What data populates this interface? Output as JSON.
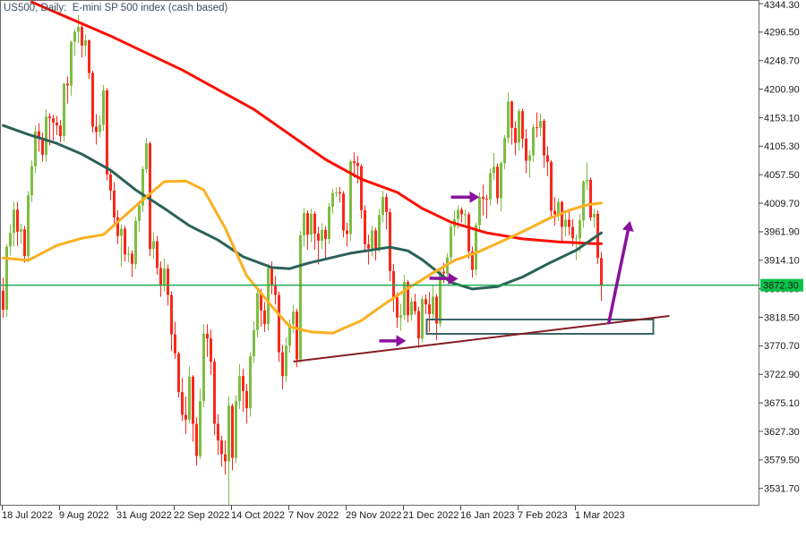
{
  "header": {
    "title": "US500, Daily:  E-mini SP 500 index (cash based)"
  },
  "chart_data": {
    "type": "candlestick",
    "symbol": "US500",
    "timeframe": "Daily",
    "description": "E-mini SP 500 index (cash based)",
    "current_price": "3872.30",
    "colors": {
      "bull": "#7dbe41",
      "bear": "#f8281a",
      "price_line": "#22ab56",
      "price_badge": "#0cc24a",
      "badge_text": "#062a10",
      "trendline": "#861c24",
      "rectangle": "#3c6468",
      "arrow": "#8a129c",
      "border": "#6b6b6b",
      "axis_text": "#1a1a1a"
    },
    "y_axis": {
      "labels": [
        "4344.30",
        "4296.50",
        "4248.70",
        "4200.90",
        "4153.10",
        "4105.30",
        "4057.50",
        "4009.70",
        "3961.90",
        "3914.10",
        "3866.30",
        "3818.50",
        "3770.70",
        "3722.90",
        "3675.10",
        "3627.30",
        "3579.50",
        "3531.70"
      ],
      "step": 47.8
    },
    "x_axis": {
      "ticks": [
        {
          "index": 0,
          "label": "18 Jul 2022"
        },
        {
          "index": 16,
          "label": "9 Aug 2022"
        },
        {
          "index": 32,
          "label": "31 Aug 2022"
        },
        {
          "index": 48,
          "label": "22 Sep 2022"
        },
        {
          "index": 64,
          "label": "14 Oct 2022"
        },
        {
          "index": 80,
          "label": "7 Nov 2022"
        },
        {
          "index": 96,
          "label": "29 Nov 2022"
        },
        {
          "index": 112,
          "label": "21 Dec 2022"
        },
        {
          "index": 128,
          "label": "16 Jan 2023"
        },
        {
          "index": 144,
          "label": "7 Feb 2023"
        },
        {
          "index": 160,
          "label": "1 Mar 2023"
        }
      ]
    },
    "candles": [
      [
        3863,
        3885,
        3818,
        3831
      ],
      [
        3831,
        3941,
        3819,
        3937
      ],
      [
        3937,
        3974,
        3922,
        3960
      ],
      [
        3960,
        4012,
        3937,
        3999
      ],
      [
        3999,
        4012,
        3938,
        3962
      ],
      [
        3962,
        3975,
        3942,
        3966
      ],
      [
        3966,
        3972,
        3910,
        3921
      ],
      [
        3921,
        4030,
        3911,
        4023
      ],
      [
        4023,
        4082,
        4012,
        4072
      ],
      [
        4072,
        4140,
        4060,
        4130
      ],
      [
        4130,
        4144,
        4096,
        4119
      ],
      [
        4119,
        4128,
        4080,
        4091
      ],
      [
        4091,
        4167,
        4079,
        4155
      ],
      [
        4155,
        4161,
        4107,
        4152
      ],
      [
        4152,
        4158,
        4115,
        4145
      ],
      [
        4145,
        4156,
        4124,
        4140
      ],
      [
        4140,
        4149,
        4112,
        4122
      ],
      [
        4122,
        4211,
        4113,
        4210
      ],
      [
        4210,
        4222,
        4177,
        4207
      ],
      [
        4207,
        4282,
        4190,
        4280
      ],
      [
        4280,
        4302,
        4257,
        4297
      ],
      [
        4297,
        4325,
        4278,
        4305
      ],
      [
        4305,
        4312,
        4254,
        4274
      ],
      [
        4274,
        4293,
        4256,
        4283
      ],
      [
        4283,
        4284,
        4218,
        4228
      ],
      [
        4228,
        4232,
        4128,
        4138
      ],
      [
        4138,
        4159,
        4108,
        4129
      ],
      [
        4129,
        4157,
        4120,
        4141
      ],
      [
        4141,
        4208,
        4131,
        4199
      ],
      [
        4199,
        4203,
        4048,
        4058
      ],
      [
        4058,
        4064,
        4015,
        4031
      ],
      [
        4031,
        4045,
        3972,
        3986
      ],
      [
        3986,
        3998,
        3941,
        3955
      ],
      [
        3955,
        3974,
        3903,
        3967
      ],
      [
        3967,
        3972,
        3912,
        3924
      ],
      [
        3924,
        3937,
        3911,
        3925
      ],
      [
        3925,
        3931,
        3886,
        3908
      ],
      [
        3908,
        3987,
        3899,
        3980
      ],
      [
        3980,
        4014,
        3961,
        4006
      ],
      [
        4006,
        4072,
        3995,
        4067
      ],
      [
        4067,
        4119,
        4060,
        4110
      ],
      [
        4110,
        4113,
        3921,
        3933
      ],
      [
        3933,
        3961,
        3917,
        3946
      ],
      [
        3946,
        3955,
        3890,
        3901
      ],
      [
        3901,
        3912,
        3853,
        3873
      ],
      [
        3873,
        3917,
        3862,
        3900
      ],
      [
        3900,
        3907,
        3838,
        3856
      ],
      [
        3856,
        3862,
        3762,
        3790
      ],
      [
        3790,
        3811,
        3749,
        3758
      ],
      [
        3758,
        3761,
        3684,
        3693
      ],
      [
        3693,
        3717,
        3645,
        3655
      ],
      [
        3655,
        3686,
        3623,
        3647
      ],
      [
        3647,
        3736,
        3641,
        3719
      ],
      [
        3719,
        3722,
        3610,
        3640
      ],
      [
        3640,
        3651,
        3570,
        3586
      ],
      [
        3586,
        3699,
        3581,
        3678
      ],
      [
        3678,
        3807,
        3668,
        3791
      ],
      [
        3791,
        3807,
        3752,
        3783
      ],
      [
        3783,
        3798,
        3722,
        3744
      ],
      [
        3744,
        3750,
        3621,
        3640
      ],
      [
        3640,
        3656,
        3588,
        3612
      ],
      [
        3612,
        3620,
        3568,
        3589
      ],
      [
        3589,
        3612,
        3555,
        3577
      ],
      [
        3577,
        3686,
        3502,
        3670
      ],
      [
        3670,
        3674,
        3562,
        3583
      ],
      [
        3583,
        3688,
        3574,
        3678
      ],
      [
        3678,
        3740,
        3665,
        3720
      ],
      [
        3720,
        3732,
        3660,
        3695
      ],
      [
        3695,
        3707,
        3641,
        3666
      ],
      [
        3666,
        3760,
        3652,
        3753
      ],
      [
        3753,
        3812,
        3742,
        3797
      ],
      [
        3797,
        3868,
        3785,
        3859
      ],
      [
        3859,
        3866,
        3803,
        3830
      ],
      [
        3830,
        3844,
        3794,
        3807
      ],
      [
        3807,
        3908,
        3796,
        3901
      ],
      [
        3901,
        3912,
        3857,
        3872
      ],
      [
        3872,
        3888,
        3840,
        3856
      ],
      [
        3856,
        3862,
        3744,
        3760
      ],
      [
        3760,
        3772,
        3698,
        3720
      ],
      [
        3720,
        3785,
        3710,
        3771
      ],
      [
        3771,
        3815,
        3759,
        3807
      ],
      [
        3807,
        3839,
        3793,
        3828
      ],
      [
        3828,
        3833,
        3735,
        3748
      ],
      [
        3748,
        3963,
        3742,
        3956
      ],
      [
        3956,
        4002,
        3937,
        3993
      ],
      [
        3993,
        3998,
        3932,
        3957
      ],
      [
        3957,
        4000,
        3944,
        3992
      ],
      [
        3992,
        3996,
        3932,
        3959
      ],
      [
        3959,
        3970,
        3907,
        3947
      ],
      [
        3947,
        3976,
        3933,
        3965
      ],
      [
        3965,
        3971,
        3914,
        3950
      ],
      [
        3950,
        4010,
        3941,
        4004
      ],
      [
        4004,
        4034,
        3992,
        4027
      ],
      [
        4027,
        4036,
        4020,
        4028
      ],
      [
        4028,
        4037,
        4011,
        4026
      ],
      [
        4026,
        4030,
        3952,
        3964
      ],
      [
        3964,
        3977,
        3937,
        3958
      ],
      [
        3958,
        4083,
        3946,
        4080
      ],
      [
        4080,
        4095,
        4053,
        4077
      ],
      [
        4077,
        4089,
        4043,
        4072
      ],
      [
        4072,
        4075,
        3984,
        3998
      ],
      [
        3998,
        4006,
        3927,
        3941
      ],
      [
        3941,
        3957,
        3907,
        3934
      ],
      [
        3934,
        3972,
        3921,
        3964
      ],
      [
        3964,
        3969,
        3914,
        3934
      ],
      [
        3934,
        4000,
        3928,
        3990
      ],
      [
        3990,
        4031,
        3978,
        4020
      ],
      [
        4020,
        4026,
        3966,
        3995
      ],
      [
        3995,
        4001,
        3879,
        3896
      ],
      [
        3896,
        3908,
        3828,
        3852
      ],
      [
        3852,
        3860,
        3801,
        3818
      ],
      [
        3818,
        3841,
        3796,
        3822
      ],
      [
        3822,
        3890,
        3814,
        3878
      ],
      [
        3878,
        3881,
        3810,
        3822
      ],
      [
        3822,
        3852,
        3813,
        3845
      ],
      [
        3845,
        3858,
        3823,
        3829
      ],
      [
        3829,
        3836,
        3767,
        3783
      ],
      [
        3783,
        3855,
        3776,
        3849
      ],
      [
        3849,
        3857,
        3824,
        3840
      ],
      [
        3840,
        3861,
        3794,
        3824
      ],
      [
        3824,
        3873,
        3816,
        3853
      ],
      [
        3853,
        3858,
        3780,
        3808
      ],
      [
        3808,
        3900,
        3802,
        3895
      ],
      [
        3895,
        3910,
        3876,
        3892
      ],
      [
        3892,
        3926,
        3880,
        3919
      ],
      [
        3919,
        3975,
        3909,
        3970
      ],
      [
        3970,
        3998,
        3955,
        3983
      ],
      [
        3983,
        4006,
        3967,
        3999
      ],
      [
        3999,
        4003,
        3977,
        3991
      ],
      [
        3991,
        3999,
        3970,
        3991
      ],
      [
        3991,
        3995,
        3917,
        3929
      ],
      [
        3929,
        3937,
        3885,
        3898
      ],
      [
        3898,
        3978,
        3889,
        3973
      ],
      [
        3973,
        4028,
        3961,
        4020
      ],
      [
        4020,
        4041,
        3989,
        4017
      ],
      [
        4017,
        4024,
        3984,
        4016
      ],
      [
        4016,
        4068,
        4006,
        4060
      ],
      [
        4060,
        4094,
        4049,
        4071
      ],
      [
        4071,
        4076,
        4008,
        4018
      ],
      [
        4018,
        4080,
        3996,
        4077
      ],
      [
        4077,
        4124,
        4067,
        4119
      ],
      [
        4119,
        4195,
        4110,
        4180
      ],
      [
        4180,
        4182,
        4108,
        4136
      ],
      [
        4136,
        4147,
        4090,
        4111
      ],
      [
        4111,
        4168,
        4098,
        4164
      ],
      [
        4164,
        4168,
        4102,
        4118
      ],
      [
        4118,
        4134,
        4060,
        4081
      ],
      [
        4081,
        4098,
        4053,
        4090
      ],
      [
        4090,
        4142,
        4079,
        4137
      ],
      [
        4137,
        4162,
        4120,
        4136
      ],
      [
        4136,
        4160,
        4122,
        4148
      ],
      [
        4148,
        4151,
        4069,
        4090
      ],
      [
        4090,
        4105,
        4055,
        4079
      ],
      [
        4079,
        4082,
        3988,
        3997
      ],
      [
        3997,
        4020,
        3972,
        3991
      ],
      [
        3991,
        4018,
        3980,
        4012
      ],
      [
        4012,
        4014,
        3943,
        3970
      ],
      [
        3970,
        3995,
        3954,
        3982
      ],
      [
        3982,
        3998,
        3956,
        3970
      ],
      [
        3970,
        3983,
        3938,
        3951
      ],
      [
        3951,
        3957,
        3914,
        3951
      ],
      [
        3951,
        3991,
        3928,
        3981
      ],
      [
        3981,
        4048,
        3969,
        4046
      ],
      [
        4046,
        4078,
        4032,
        4049
      ],
      [
        4049,
        4053,
        3980,
        3986
      ],
      [
        3986,
        4000,
        3969,
        3992
      ],
      [
        3992,
        3998,
        3908,
        3918
      ],
      [
        3918,
        3928,
        3846,
        3872.3
      ]
    ],
    "moving_averages": [
      {
        "name": "ma-slow-red",
        "color": "#fa0f00",
        "width": 3,
        "points": [
          [
            8,
            4347
          ],
          [
            30,
            4290
          ],
          [
            50,
            4233
          ],
          [
            70,
            4167
          ],
          [
            90,
            4083
          ],
          [
            100,
            4050
          ],
          [
            110,
            4028
          ],
          [
            117,
            4001
          ],
          [
            125,
            3978
          ],
          [
            135,
            3960
          ],
          [
            145,
            3950
          ],
          [
            155,
            3945
          ],
          [
            165,
            3942
          ],
          [
            167,
            3942
          ]
        ]
      },
      {
        "name": "ma-mid-teal",
        "color": "#2c6158",
        "width": 3,
        "points": [
          [
            0,
            4140
          ],
          [
            7,
            4125
          ],
          [
            15,
            4110
          ],
          [
            22,
            4092
          ],
          [
            30,
            4065
          ],
          [
            37,
            4032
          ],
          [
            45,
            4001
          ],
          [
            52,
            3972
          ],
          [
            60,
            3948
          ],
          [
            67,
            3920
          ],
          [
            75,
            3902
          ],
          [
            80,
            3900
          ],
          [
            85,
            3909
          ],
          [
            97,
            3926
          ],
          [
            108,
            3936
          ],
          [
            113,
            3930
          ],
          [
            117,
            3915
          ],
          [
            125,
            3877
          ],
          [
            131,
            3866
          ],
          [
            138,
            3870
          ],
          [
            145,
            3886
          ],
          [
            152,
            3908
          ],
          [
            160,
            3931
          ],
          [
            166,
            3956
          ],
          [
            167,
            3960
          ]
        ]
      },
      {
        "name": "ma-fast-orange",
        "color": "#fcaf20",
        "width": 3,
        "points": [
          [
            0,
            3918
          ],
          [
            7,
            3914
          ],
          [
            15,
            3939
          ],
          [
            22,
            3951
          ],
          [
            28,
            3957
          ],
          [
            37,
            4005
          ],
          [
            45,
            4046
          ],
          [
            51,
            4047
          ],
          [
            56,
            4032
          ],
          [
            62,
            3968
          ],
          [
            68,
            3888
          ],
          [
            75,
            3837
          ],
          [
            80,
            3803
          ],
          [
            86,
            3794
          ],
          [
            92,
            3792
          ],
          [
            100,
            3813
          ],
          [
            107,
            3843
          ],
          [
            113,
            3867
          ],
          [
            120,
            3893
          ],
          [
            126,
            3914
          ],
          [
            133,
            3929
          ],
          [
            140,
            3948
          ],
          [
            146,
            3965
          ],
          [
            152,
            3983
          ],
          [
            158,
            3998
          ],
          [
            163,
            4007
          ],
          [
            167,
            4010
          ]
        ]
      }
    ],
    "horizontal_line": {
      "price": 3872.3
    },
    "trendline": {
      "from": [
        81,
        3744.3
      ],
      "to": [
        186,
        3820.8
      ]
    },
    "rectangle": {
      "from": [
        118.25,
        3814.8
      ],
      "to": [
        181.5,
        3790.8
      ]
    },
    "arrows": [
      {
        "name": "arrow-right-1",
        "from": [
          125,
          4020
        ],
        "to": [
          133,
          4020
        ]
      },
      {
        "name": "arrow-right-2",
        "from": [
          119,
          3884
        ],
        "to": [
          127,
          3883
        ]
      },
      {
        "name": "arrow-right-3",
        "from": [
          105,
          3779
        ],
        "to": [
          112.5,
          3779
        ]
      },
      {
        "name": "arrow-up-diagonal",
        "from": [
          169,
          3807
        ],
        "to": [
          175,
          3980
        ]
      }
    ]
  }
}
